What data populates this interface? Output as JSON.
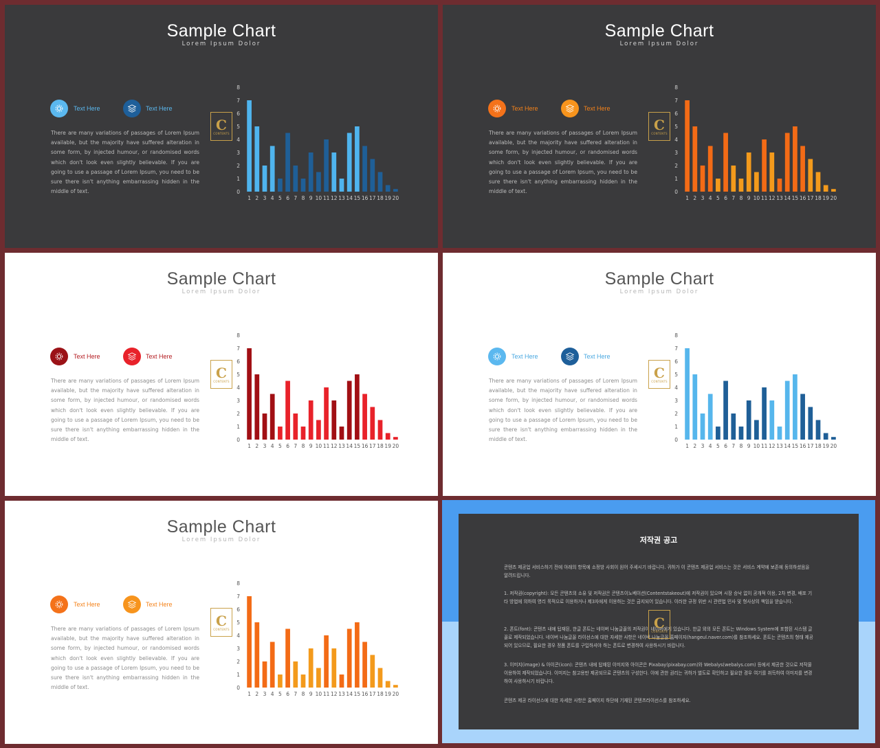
{
  "chart_data": [
    {
      "type": "bar",
      "title": "Sample Chart",
      "subtitle": "Lorem Ipsum Dolor",
      "categories": [
        "1",
        "2",
        "3",
        "4",
        "5",
        "6",
        "7",
        "8",
        "9",
        "10",
        "11",
        "12",
        "13",
        "14",
        "15",
        "16",
        "17",
        "18",
        "19",
        "20"
      ],
      "values": [
        7,
        5,
        2,
        3.5,
        1,
        4.5,
        2,
        1,
        3,
        1.5,
        4,
        3,
        1,
        4.5,
        5,
        3.5,
        2.5,
        1.5,
        0.5,
        0.2
      ],
      "yticks": [
        0,
        1,
        2,
        3,
        4,
        5,
        6,
        7,
        8
      ],
      "ylim": [
        0,
        8
      ],
      "xlabel": "",
      "ylabel": ""
    }
  ],
  "slides": [
    {
      "theme": "dark",
      "colors": [
        "#5bb8ef",
        "#1e5f9a"
      ],
      "bar_colors": [
        "#4fb4ee",
        "#4fb4ee",
        "#4fb4ee",
        "#4fb4ee",
        "#1f5f97",
        "#1f5f97",
        "#1f5f97",
        "#1f5f97",
        "#1f5f97",
        "#1f5f97",
        "#1f5f97",
        "#4fb4ee",
        "#4fb4ee",
        "#4fb4ee",
        "#4fb4ee",
        "#1f5f97",
        "#1f5f97",
        "#1f5f97",
        "#1f5f97",
        "#1f5f97"
      ],
      "label_color": "#5bb8ef"
    },
    {
      "theme": "dark",
      "colors": [
        "#f4721a",
        "#f7941d"
      ],
      "bar_colors": [
        "#f36b16",
        "#f36b16",
        "#f36b16",
        "#f36b16",
        "#f39a1c",
        "#f36b16",
        "#f39a1c",
        "#f39a1c",
        "#f39a1c",
        "#f39a1c",
        "#f36b16",
        "#f39a1c",
        "#f36b16",
        "#f36b16",
        "#f36b16",
        "#f36b16",
        "#f39a1c",
        "#f39a1c",
        "#f39a1c",
        "#f39a1c"
      ],
      "label_color": "#f4821a"
    },
    {
      "theme": "light",
      "colors": [
        "#9b1217",
        "#e8222a"
      ],
      "bar_colors": [
        "#a10f14",
        "#a10f14",
        "#a10f14",
        "#a10f14",
        "#e8222a",
        "#e8222a",
        "#e8222a",
        "#e8222a",
        "#e8222a",
        "#e8222a",
        "#e8222a",
        "#a10f14",
        "#a10f14",
        "#a10f14",
        "#a10f14",
        "#e8222a",
        "#e8222a",
        "#e8222a",
        "#e8222a",
        "#e8222a"
      ],
      "label_color": "#b31a1f"
    },
    {
      "theme": "light",
      "colors": [
        "#5bb8ef",
        "#1e5f9a"
      ],
      "bar_colors": [
        "#56b6ec",
        "#56b6ec",
        "#56b6ec",
        "#56b6ec",
        "#1f5f97",
        "#1f5f97",
        "#1f5f97",
        "#1f5f97",
        "#1f5f97",
        "#1f5f97",
        "#1f5f97",
        "#56b6ec",
        "#56b6ec",
        "#56b6ec",
        "#56b6ec",
        "#1f5f97",
        "#1f5f97",
        "#1f5f97",
        "#1f5f97",
        "#1f5f97"
      ],
      "label_color": "#4aa8e0"
    },
    {
      "theme": "light",
      "colors": [
        "#f4721a",
        "#f7941d"
      ],
      "bar_colors": [
        "#f36b16",
        "#f36b16",
        "#f36b16",
        "#f36b16",
        "#f39a1c",
        "#f36b16",
        "#f39a1c",
        "#f39a1c",
        "#f39a1c",
        "#f39a1c",
        "#f36b16",
        "#f39a1c",
        "#f36b16",
        "#f36b16",
        "#f36b16",
        "#f36b16",
        "#f39a1c",
        "#f39a1c",
        "#f39a1c",
        "#f39a1c"
      ],
      "label_color": "#f4821a"
    }
  ],
  "content": {
    "title": "Sample Chart",
    "subtitle": "Lorem Ipsum Dolor",
    "label1": "Text Here",
    "label2": "Text Here",
    "icon1": "gear-icon",
    "icon2": "layers-icon",
    "body": "There are many variations of passages of Lorem Ipsum available, but the majority have suffered alteration in some form, by injected humour, or randomised words which don't look even slightly believable. If you are going to use a passage of Lorem Ipsum, you need to be sure there isn't anything embarrassing hidden in the middle of text."
  },
  "logo": {
    "letter": "C",
    "text": "CONTENTS"
  },
  "notice": {
    "title": "저작권 공고",
    "intro": "콘텐츠 제공업 서비스하기 전에 아래의 항목에 소정방 사회이 원어 주세시기 바랍니다. 귀하가 이 콘텐츠 제공업 서비스는 것은 서비스 계약에 보존에 동의하셨음을 알려드립니다.",
    "p1": "1. 저작권(copyright): 모든 콘텐츠의 소유 및 저작권은 콘텐츠이노베이션(Contentstakeout)에 저작권이 있으며 시장 승낙 없이 공개적 이용, 2차 변경, 배포 기타 방법에 의하여 영리 목적으로 이용하거나 제3자에게 이용하는 것은 금지되어 있습니다. 이러한 규정 위반 시 관련법 민사 및 형사상의 책임을 받습니다.",
    "p2": "2. 폰트(font): 콘텐츠 내에 탑재된, 한글 폰트는 네이버 나눔글꼴의 저작권이 네이버에게 있습니다. 한글 외의 모든 폰트는 Windows System에 포함된 시스템 글꼴로 제작되었습니다. 네이버 나눔글꼴 라이선스에 대한 자세한 사항은 네이버 나눔글꼴 홈페이지(hangeul.naver.com)를 참조하세요. 폰트는 콘텐츠의 형태 제공되어 있으므로, 필요한 경우 정품 폰트를 구입하셔야 하는 폰트로 변경하여 사용하시기 바랍니다.",
    "p3": "3. 이미지(image) & 아이콘(icon): 콘텐츠 내에 탑재된 이미지와 아이콘은 Pixabay(pixabay.com)와 Webalys(webalys.com) 등에서 제공한 것으로 저작물 이용하여 제작되었습니다. 이미지는 참고용만 제공되므로 콘텐츠의 구성한다. 이에 관한 권리는 귀하가 별도로 확인하고 필요한 경우 여기를 취득하여 이미지를 변경하여 사용하시기 바랍니다.",
    "outro": "콘텐츠 제공 라이선스에 대한 자세한 사항은 홈페이지 하단에 기재된 콘텐츠라이선스를 참조하세요."
  }
}
